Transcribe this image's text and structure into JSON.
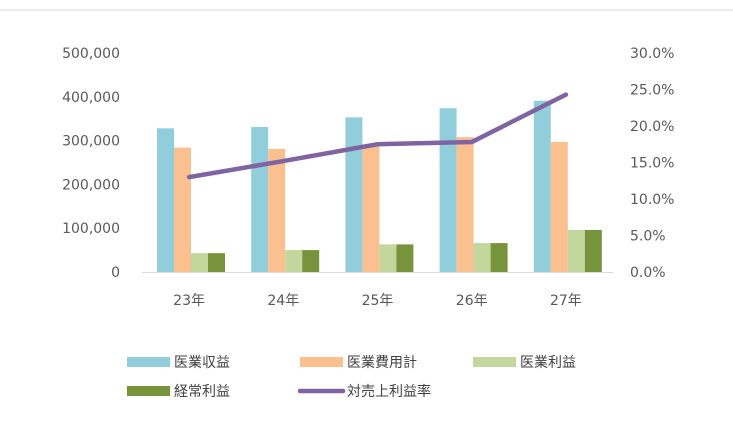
{
  "chart_data": {
    "type": "bar",
    "title": "",
    "categories": [
      "23年",
      "24年",
      "25年",
      "26年",
      "27年"
    ],
    "series": [
      {
        "name": "医業収益",
        "type": "bar",
        "axis": "left",
        "color": "#92CDDC",
        "values": [
          328000,
          331000,
          353000,
          374000,
          391000
        ]
      },
      {
        "name": "医業費用計",
        "type": "bar",
        "axis": "left",
        "color": "#FAC090",
        "values": [
          284000,
          281000,
          290000,
          308000,
          297000
        ]
      },
      {
        "name": "医業利益",
        "type": "bar",
        "axis": "left",
        "color": "#C3D69B",
        "values": [
          43000,
          50000,
          63000,
          66000,
          96000
        ]
      },
      {
        "name": "経常利益",
        "type": "bar",
        "axis": "left",
        "color": "#77933C",
        "values": [
          43000,
          50000,
          63000,
          66000,
          96000
        ]
      },
      {
        "name": "対売上利益率",
        "type": "line",
        "axis": "right",
        "color": "#8064A2",
        "values": [
          13.0,
          15.2,
          17.5,
          17.8,
          24.3
        ]
      }
    ],
    "y_left": {
      "min": 0,
      "max": 500000,
      "step": 100000,
      "ticks": [
        "0",
        "100,000",
        "200,000",
        "300,000",
        "400,000",
        "500,000"
      ]
    },
    "y_right": {
      "min": 0,
      "max": 30,
      "step": 5,
      "ticks": [
        "0.0%",
        "5.0%",
        "10.0%",
        "15.0%",
        "20.0%",
        "25.0%",
        "30.0%"
      ]
    },
    "grid": false,
    "legend": "bottom"
  }
}
